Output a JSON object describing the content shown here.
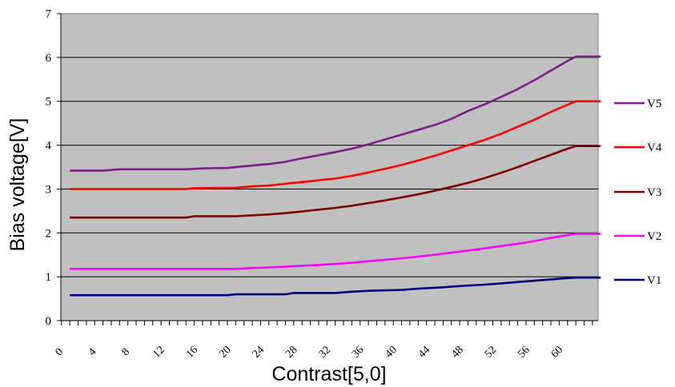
{
  "chart_data": {
    "type": "line",
    "title": "",
    "xlabel": "Contrast[5,0]",
    "ylabel": "Bias voltage[V]",
    "xlim": [
      0,
      64
    ],
    "ylim": [
      0,
      7
    ],
    "yticks": [
      0,
      1,
      2,
      3,
      4,
      5,
      6,
      7
    ],
    "xticks": [
      0,
      4,
      8,
      12,
      16,
      20,
      24,
      28,
      32,
      36,
      40,
      44,
      48,
      52,
      56,
      60
    ],
    "grid": "horizontal",
    "legend_position": "right",
    "series": [
      {
        "name": "V5",
        "color": "#7b1f86",
        "points": [
          [
            1,
            3.42
          ],
          [
            5,
            3.42
          ],
          [
            7,
            3.45
          ],
          [
            12,
            3.45
          ],
          [
            15,
            3.45
          ],
          [
            17,
            3.47
          ],
          [
            20,
            3.48
          ],
          [
            22,
            3.52
          ],
          [
            25,
            3.57
          ],
          [
            27,
            3.62
          ],
          [
            29,
            3.7
          ],
          [
            31,
            3.77
          ],
          [
            33,
            3.84
          ],
          [
            35,
            3.92
          ],
          [
            37,
            4.02
          ],
          [
            39,
            4.13
          ],
          [
            41,
            4.24
          ],
          [
            43,
            4.35
          ],
          [
            45,
            4.46
          ],
          [
            47,
            4.6
          ],
          [
            49,
            4.78
          ],
          [
            51,
            4.93
          ],
          [
            53,
            5.1
          ],
          [
            55,
            5.28
          ],
          [
            57,
            5.48
          ],
          [
            59,
            5.7
          ],
          [
            61,
            5.92
          ],
          [
            62,
            6.02
          ],
          [
            65,
            6.02
          ]
        ]
      },
      {
        "name": "V4",
        "color": "#ff0000",
        "points": [
          [
            1,
            3.0
          ],
          [
            15,
            3.0
          ],
          [
            16,
            3.02
          ],
          [
            21,
            3.03
          ],
          [
            23,
            3.06
          ],
          [
            25,
            3.08
          ],
          [
            27,
            3.12
          ],
          [
            29,
            3.16
          ],
          [
            31,
            3.2
          ],
          [
            33,
            3.24
          ],
          [
            35,
            3.3
          ],
          [
            37,
            3.38
          ],
          [
            39,
            3.46
          ],
          [
            41,
            3.55
          ],
          [
            43,
            3.65
          ],
          [
            45,
            3.76
          ],
          [
            47,
            3.88
          ],
          [
            49,
            4.0
          ],
          [
            51,
            4.12
          ],
          [
            53,
            4.26
          ],
          [
            55,
            4.42
          ],
          [
            57,
            4.58
          ],
          [
            59,
            4.76
          ],
          [
            61,
            4.92
          ],
          [
            62,
            5.0
          ],
          [
            65,
            5.0
          ]
        ]
      },
      {
        "name": "V3",
        "color": "#800000",
        "points": [
          [
            1,
            2.35
          ],
          [
            15,
            2.35
          ],
          [
            16,
            2.38
          ],
          [
            21,
            2.38
          ],
          [
            23,
            2.4
          ],
          [
            25,
            2.42
          ],
          [
            27,
            2.45
          ],
          [
            29,
            2.49
          ],
          [
            31,
            2.53
          ],
          [
            33,
            2.57
          ],
          [
            35,
            2.62
          ],
          [
            37,
            2.68
          ],
          [
            39,
            2.74
          ],
          [
            41,
            2.81
          ],
          [
            43,
            2.88
          ],
          [
            45,
            2.96
          ],
          [
            47,
            3.05
          ],
          [
            49,
            3.14
          ],
          [
            51,
            3.25
          ],
          [
            53,
            3.37
          ],
          [
            55,
            3.5
          ],
          [
            57,
            3.64
          ],
          [
            59,
            3.78
          ],
          [
            61,
            3.92
          ],
          [
            62,
            3.98
          ],
          [
            65,
            3.98
          ]
        ]
      },
      {
        "name": "V2",
        "color": "#ff00ff",
        "points": [
          [
            1,
            1.18
          ],
          [
            21,
            1.18
          ],
          [
            23,
            1.2
          ],
          [
            26,
            1.22
          ],
          [
            29,
            1.25
          ],
          [
            32,
            1.28
          ],
          [
            35,
            1.32
          ],
          [
            38,
            1.37
          ],
          [
            41,
            1.42
          ],
          [
            44,
            1.48
          ],
          [
            47,
            1.55
          ],
          [
            50,
            1.62
          ],
          [
            53,
            1.7
          ],
          [
            56,
            1.78
          ],
          [
            58,
            1.85
          ],
          [
            60,
            1.92
          ],
          [
            62,
            1.98
          ],
          [
            65,
            1.98
          ]
        ]
      },
      {
        "name": "V1",
        "color": "#00007f",
        "points": [
          [
            1,
            0.58
          ],
          [
            20,
            0.58
          ],
          [
            21,
            0.6
          ],
          [
            27,
            0.6
          ],
          [
            28,
            0.63
          ],
          [
            33,
            0.63
          ],
          [
            35,
            0.66
          ],
          [
            37,
            0.68
          ],
          [
            41,
            0.7
          ],
          [
            43,
            0.73
          ],
          [
            46,
            0.76
          ],
          [
            48,
            0.79
          ],
          [
            51,
            0.82
          ],
          [
            53,
            0.85
          ],
          [
            55,
            0.88
          ],
          [
            57,
            0.91
          ],
          [
            59,
            0.94
          ],
          [
            61,
            0.97
          ],
          [
            62,
            0.98
          ],
          [
            65,
            0.98
          ]
        ]
      }
    ]
  }
}
